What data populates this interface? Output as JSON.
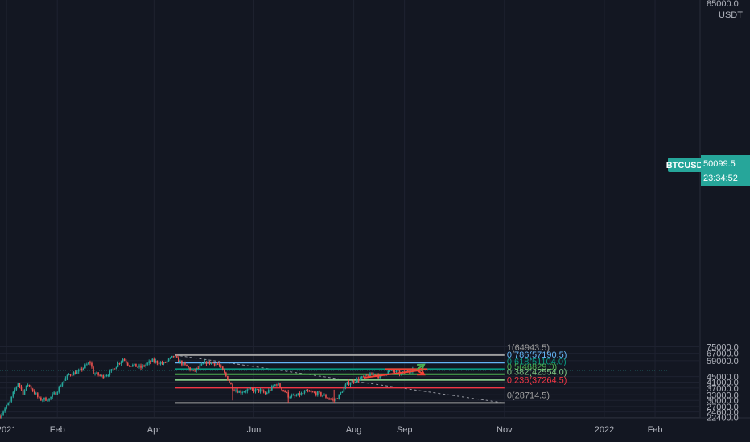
{
  "symbol": {
    "ticker": "BTCUSDT",
    "price": "50099.5",
    "countdown": "23:34:52",
    "quote_currency": "USDT",
    "top_price_label": "85000.0"
  },
  "colors": {
    "background": "#131722",
    "grid": "#1e2230",
    "axis_text": "#b2b5be",
    "candle_up": "#26a69a",
    "candle_down": "#ef5350",
    "price_badge": "#26a69a",
    "dashed_line": "#9598a1",
    "arrow_green": "#4caf50",
    "arrow_red": "#f44336"
  },
  "chart_data": {
    "type": "candlestick",
    "title": "",
    "y_axis": {
      "scale": "log",
      "range": [
        22000,
        85000
      ],
      "ticks": [
        "22400.0",
        "24600.0",
        "27000.0",
        "30000.0",
        "33000.0",
        "37000.0",
        "41000.0",
        "45000.0",
        "50099.5",
        "59000.0",
        "67000.0",
        "75000.0"
      ]
    },
    "x_axis": {
      "range": [
        "2020-12-28",
        "2022-02-28"
      ],
      "ticks": [
        {
          "label": "2021",
          "date": "2021-01-01"
        },
        {
          "label": "Feb",
          "date": "2021-02-01"
        },
        {
          "label": "Apr",
          "date": "2021-04-01"
        },
        {
          "label": "Jun",
          "date": "2021-06-01"
        },
        {
          "label": "Aug",
          "date": "2021-08-01"
        },
        {
          "label": "Sep",
          "date": "2021-09-01"
        },
        {
          "label": "Nov",
          "date": "2021-11-01"
        },
        {
          "label": "2022",
          "date": "2022-01-01"
        },
        {
          "label": "Feb",
          "date": "2022-02-01"
        }
      ]
    },
    "price_path": [
      [
        "2020-12-28",
        23000
      ],
      [
        "2021-01-03",
        29000
      ],
      [
        "2021-01-08",
        40500
      ],
      [
        "2021-01-11",
        34000
      ],
      [
        "2021-01-14",
        39500
      ],
      [
        "2021-01-21",
        30500
      ],
      [
        "2021-01-27",
        30800
      ],
      [
        "2021-01-31",
        34300
      ],
      [
        "2021-02-08",
        46500
      ],
      [
        "2021-02-14",
        48800
      ],
      [
        "2021-02-21",
        57500
      ],
      [
        "2021-02-23",
        48000
      ],
      [
        "2021-02-28",
        45200
      ],
      [
        "2021-03-05",
        48000
      ],
      [
        "2021-03-13",
        61000
      ],
      [
        "2021-03-16",
        55800
      ],
      [
        "2021-03-24",
        52500
      ],
      [
        "2021-03-31",
        58800
      ],
      [
        "2021-04-07",
        56000
      ],
      [
        "2021-04-13",
        63500
      ],
      [
        "2021-04-18",
        56200
      ],
      [
        "2021-04-25",
        49000
      ],
      [
        "2021-05-03",
        57500
      ],
      [
        "2021-05-10",
        55800
      ],
      [
        "2021-05-13",
        49500
      ],
      [
        "2021-05-19",
        37000
      ],
      [
        "2021-05-23",
        34800
      ],
      [
        "2021-05-28",
        35700
      ],
      [
        "2021-06-05",
        35500
      ],
      [
        "2021-06-08",
        33500
      ],
      [
        "2021-06-15",
        40100
      ],
      [
        "2021-06-22",
        32500
      ],
      [
        "2021-06-26",
        32000
      ],
      [
        "2021-07-03",
        34700
      ],
      [
        "2021-07-10",
        33800
      ],
      [
        "2021-07-15",
        31900
      ],
      [
        "2021-07-20",
        29800
      ],
      [
        "2021-07-23",
        32500
      ],
      [
        "2021-07-28",
        40000
      ],
      [
        "2021-08-07",
        44500
      ],
      [
        "2021-08-14",
        47200
      ],
      [
        "2021-08-17",
        45000
      ],
      [
        "2021-08-22",
        49200
      ],
      [
        "2021-08-27",
        48900
      ],
      [
        "2021-08-30",
        47000
      ],
      [
        "2021-09-02",
        49200
      ],
      [
        "2021-09-06",
        51300
      ],
      [
        "2021-09-07",
        50099.5
      ]
    ],
    "fibonacci": {
      "start_date": "2021-04-14",
      "end_date": "2021-11-01",
      "levels": [
        {
          "label": "1(64943.5)",
          "ratio": 1,
          "price": 64943.5,
          "color": "#9e9e9e"
        },
        {
          "label": "0.786(57190.5)",
          "ratio": 0.786,
          "price": 57190.5,
          "color": "#64b5f6"
        },
        {
          "label": "0.618(51104.0)",
          "ratio": 0.618,
          "price": 51104.0,
          "color": "#089981"
        },
        {
          "label": "0.5(46829.0)",
          "ratio": 0.5,
          "price": 46829.0,
          "color": "#4caf50"
        },
        {
          "label": "0.382(42554.0)",
          "ratio": 0.382,
          "price": 42554.0,
          "color": "#81c784"
        },
        {
          "label": "0.236(37264.5)",
          "ratio": 0.236,
          "price": 37264.5,
          "color": "#f23645"
        },
        {
          "label": "0(28714.5)",
          "ratio": 0,
          "price": 28714.5,
          "color": "#9e9e9e"
        }
      ],
      "trend_line": {
        "from": [
          "2021-04-14",
          64943.5
        ],
        "to": [
          "2021-11-01",
          28714.5
        ]
      }
    },
    "drawings": [
      {
        "type": "line",
        "name": "upper-resistance",
        "color": "#f44336",
        "from": [
          "2021-08-20",
          51150
        ],
        "to": [
          "2021-09-15",
          51150
        ]
      },
      {
        "type": "line",
        "name": "rising-support",
        "color": "#f44336",
        "from": [
          "2021-08-07",
          44200
        ],
        "to": [
          "2021-09-15",
          51000
        ]
      },
      {
        "type": "arrow",
        "name": "bullish-breakout-arrow",
        "color": "#4caf50",
        "from": [
          "2021-09-08",
          50300
        ],
        "to": [
          "2021-09-13",
          55300
        ]
      },
      {
        "type": "arrow",
        "name": "bearish-breakdown-arrow",
        "color": "#f44336",
        "from": [
          "2021-09-08",
          50700
        ],
        "to": [
          "2021-09-13",
          46500
        ]
      }
    ]
  }
}
